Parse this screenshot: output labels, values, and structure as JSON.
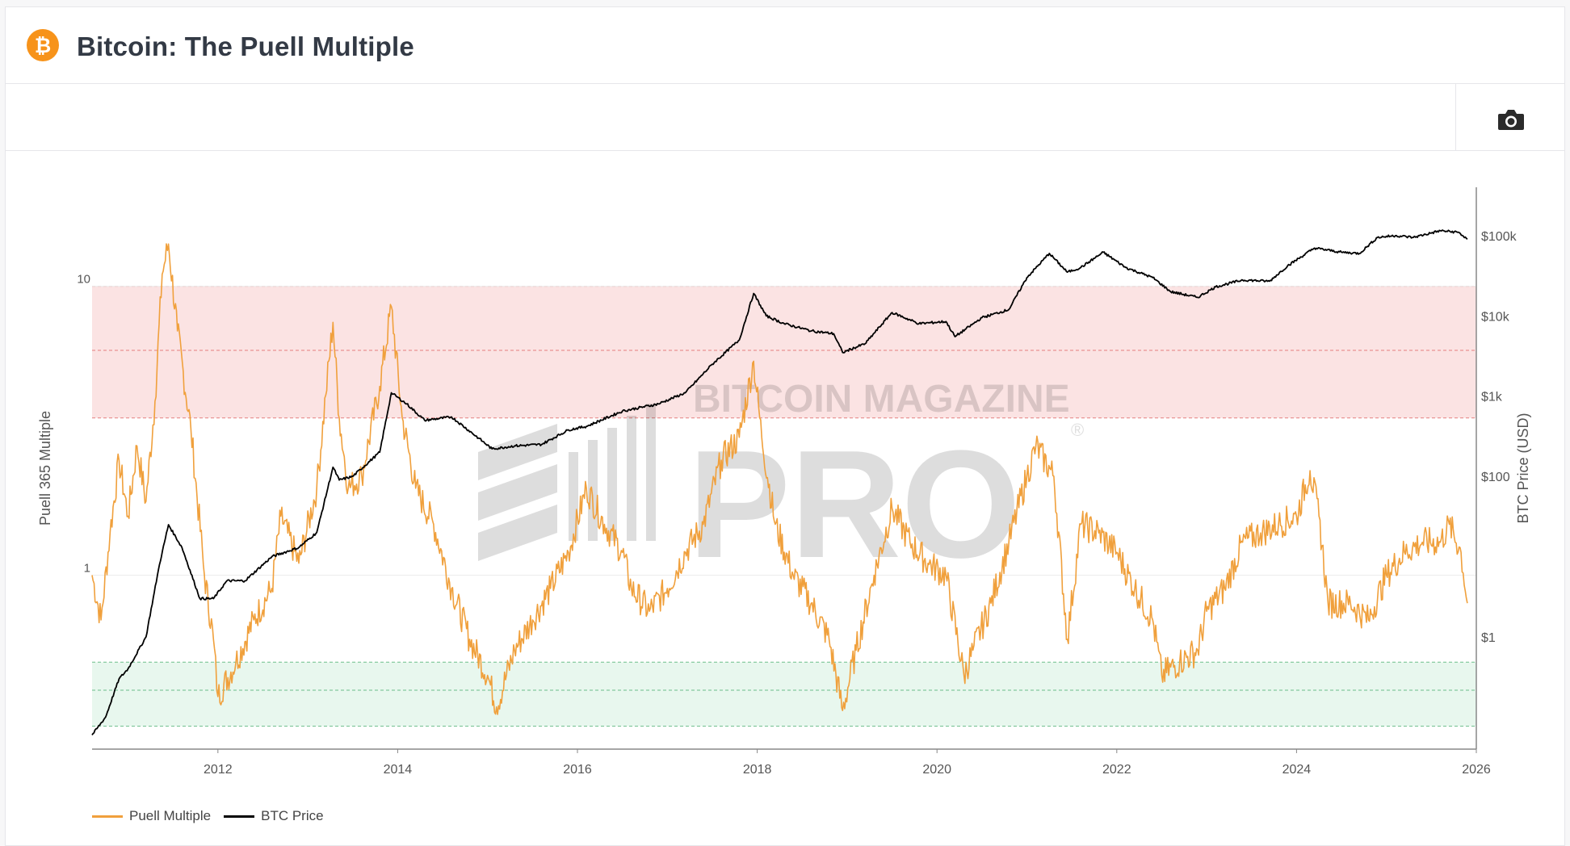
{
  "header": {
    "title": "Bitcoin: The Puell Multiple",
    "logo_color": "#f7931a"
  },
  "toolbar": {
    "camera_icon": "camera-icon"
  },
  "watermark": {
    "line1": "BITCOIN MAGAZINE",
    "line2": "PRO",
    "mark": "®"
  },
  "legend": {
    "items": [
      {
        "label": "Puell Multiple",
        "color": "#f0a03c"
      },
      {
        "label": "BTC Price",
        "color": "#000000"
      }
    ]
  },
  "colors": {
    "puell": "#f0a03c",
    "price": "#000000",
    "red_band": "#fbe3e3",
    "red_band_line": "#e06666",
    "green_band": "#e8f7ee",
    "green_band_line": "#4caf72",
    "grid": "#ececec",
    "axis": "#888888"
  },
  "chart_data": {
    "type": "line",
    "title": "Bitcoin: The Puell Multiple",
    "x_range": [
      2010.6,
      2026.0
    ],
    "x_ticks": [
      "2012",
      "2014",
      "2016",
      "2018",
      "2020",
      "2022",
      "2024",
      "2026"
    ],
    "y_left": {
      "label": "Puell 365 Multiple",
      "scale": "log",
      "range": [
        0.25,
        22
      ],
      "ticks": [
        "1",
        "10"
      ]
    },
    "y_right": {
      "label": "BTC Price (USD)",
      "scale": "log",
      "range": [
        0.04,
        400000
      ],
      "ticks": [
        "$1",
        "$100",
        "$1k",
        "$10k",
        "$100k"
      ]
    },
    "bands": [
      {
        "name": "upper",
        "from": 3.5,
        "to": 10,
        "lines": [
          3.5,
          6,
          10
        ]
      },
      {
        "name": "lower",
        "from": 0.3,
        "to": 0.5,
        "lines": [
          0.3,
          0.4,
          0.5
        ]
      }
    ],
    "series": [
      {
        "name": "Puell Multiple",
        "axis": "left",
        "x": [
          2010.6,
          2010.7,
          2010.8,
          2010.9,
          2011.0,
          2011.1,
          2011.2,
          2011.3,
          2011.38,
          2011.45,
          2011.55,
          2011.7,
          2011.85,
          2011.95,
          2012.0,
          2012.2,
          2012.4,
          2012.6,
          2012.7,
          2012.9,
          2013.1,
          2013.2,
          2013.28,
          2013.35,
          2013.45,
          2013.6,
          2013.8,
          2013.93,
          2014.05,
          2014.2,
          2014.4,
          2014.6,
          2014.8,
          2015.0,
          2015.1,
          2015.3,
          2015.5,
          2015.7,
          2015.9,
          2016.1,
          2016.3,
          2016.5,
          2016.6,
          2016.8,
          2017.0,
          2017.2,
          2017.4,
          2017.6,
          2017.8,
          2017.96,
          2018.05,
          2018.2,
          2018.4,
          2018.6,
          2018.8,
          2018.95,
          2019.1,
          2019.3,
          2019.5,
          2019.7,
          2019.9,
          2020.1,
          2020.3,
          2020.4,
          2020.6,
          2020.8,
          2021.0,
          2021.1,
          2021.3,
          2021.45,
          2021.6,
          2021.8,
          2022.0,
          2022.2,
          2022.4,
          2022.5,
          2022.7,
          2022.9,
          2023.0,
          2023.2,
          2023.4,
          2023.6,
          2023.8,
          2024.0,
          2024.15,
          2024.25,
          2024.35,
          2024.6,
          2024.8,
          2025.0,
          2025.2,
          2025.4,
          2025.6,
          2025.7,
          2025.83,
          2025.9
        ],
        "values": [
          1.0,
          0.7,
          1.4,
          2.5,
          1.6,
          2.8,
          1.8,
          4.0,
          11.0,
          14.0,
          7.0,
          3.2,
          1.0,
          0.6,
          0.38,
          0.5,
          0.7,
          0.9,
          1.6,
          1.1,
          2.0,
          4.2,
          7.5,
          3.5,
          2.0,
          2.2,
          4.5,
          8.5,
          3.5,
          2.0,
          1.5,
          0.9,
          0.6,
          0.45,
          0.35,
          0.55,
          0.7,
          0.9,
          1.2,
          2.0,
          1.5,
          1.2,
          0.9,
          0.75,
          0.9,
          1.2,
          1.5,
          2.5,
          3.0,
          5.5,
          3.0,
          1.5,
          1.0,
          0.8,
          0.6,
          0.34,
          0.55,
          1.0,
          1.7,
          1.3,
          1.1,
          1.0,
          0.45,
          0.55,
          0.8,
          1.3,
          2.2,
          2.8,
          2.2,
          0.6,
          1.5,
          1.4,
          1.2,
          0.9,
          0.7,
          0.45,
          0.5,
          0.55,
          0.75,
          0.9,
          1.3,
          1.4,
          1.5,
          1.6,
          2.3,
          1.6,
          0.8,
          0.8,
          0.7,
          1.0,
          1.2,
          1.3,
          1.3,
          1.5,
          1.2,
          0.8
        ]
      },
      {
        "name": "BTC Price",
        "axis": "right",
        "x": [
          2010.6,
          2010.75,
          2010.9,
          2011.0,
          2011.2,
          2011.35,
          2011.45,
          2011.6,
          2011.8,
          2011.95,
          2012.1,
          2012.3,
          2012.6,
          2012.9,
          2013.1,
          2013.28,
          2013.35,
          2013.5,
          2013.8,
          2013.93,
          2014.1,
          2014.3,
          2014.6,
          2014.9,
          2015.05,
          2015.3,
          2015.6,
          2015.9,
          2016.1,
          2016.5,
          2016.9,
          2017.2,
          2017.5,
          2017.8,
          2017.96,
          2018.1,
          2018.3,
          2018.6,
          2018.85,
          2018.95,
          2019.2,
          2019.5,
          2019.8,
          2020.1,
          2020.2,
          2020.5,
          2020.8,
          2021.0,
          2021.25,
          2021.45,
          2021.6,
          2021.85,
          2022.1,
          2022.4,
          2022.6,
          2022.9,
          2023.1,
          2023.4,
          2023.7,
          2023.9,
          2024.2,
          2024.5,
          2024.7,
          2024.9,
          2025.1,
          2025.3,
          2025.6,
          2025.8,
          2025.9
        ],
        "values": [
          0.06,
          0.1,
          0.3,
          0.4,
          1.0,
          8.0,
          25.0,
          13.0,
          3.0,
          3.0,
          5.0,
          5.0,
          10.0,
          13.0,
          20.0,
          130.0,
          90.0,
          100.0,
          200.0,
          1100.0,
          800.0,
          500.0,
          550.0,
          300.0,
          220.0,
          240.0,
          250.0,
          380.0,
          420.0,
          650.0,
          800.0,
          1100.0,
          2500.0,
          5000.0,
          19000.0,
          10000.0,
          8000.0,
          6500.0,
          6000.0,
          3500.0,
          4500.0,
          11000.0,
          8000.0,
          8500.0,
          5500.0,
          9500.0,
          12000.0,
          30000.0,
          60000.0,
          35000.0,
          40000.0,
          62000.0,
          40000.0,
          30000.0,
          20000.0,
          17000.0,
          23000.0,
          28000.0,
          27000.0,
          42000.0,
          70000.0,
          62000.0,
          60000.0,
          95000.0,
          100000.0,
          95000.0,
          115000.0,
          110000.0,
          90000.0
        ]
      }
    ]
  }
}
